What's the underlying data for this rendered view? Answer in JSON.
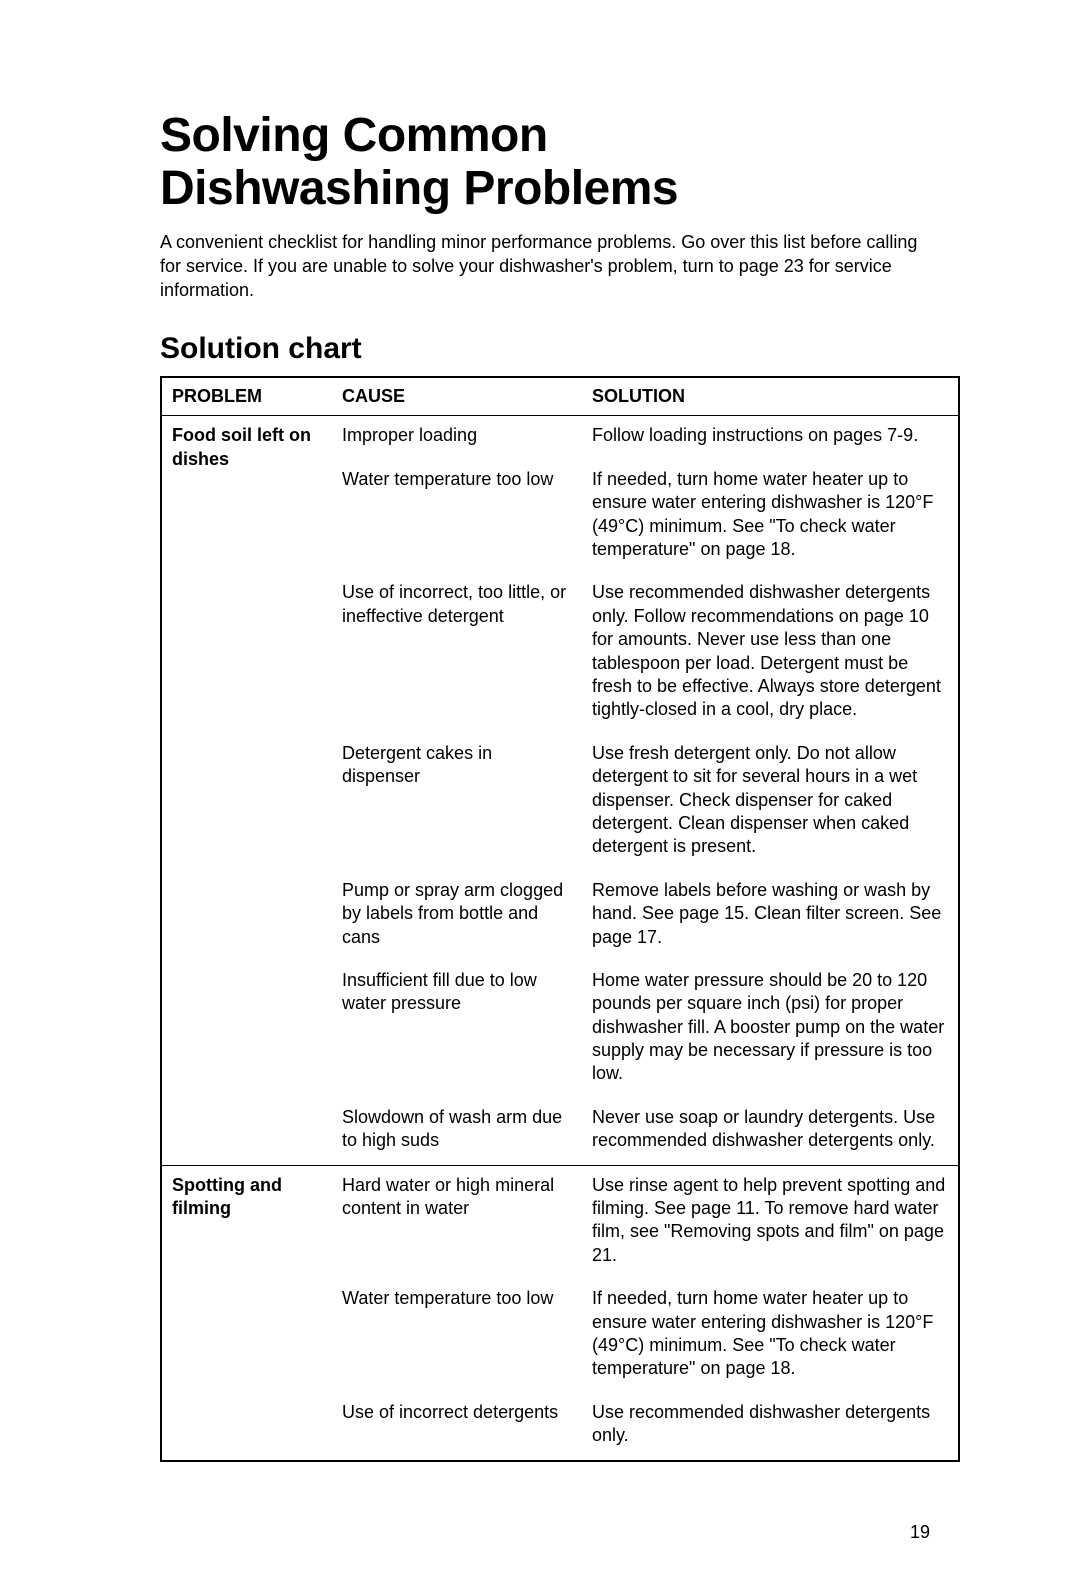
{
  "title_line1": "Solving Common",
  "title_line2": "Dishwashing Problems",
  "intro": "A convenient checklist for handling minor performance problems. Go over this list before calling for service. If you are unable to solve your dishwasher's problem, turn to page 23 for service information.",
  "subheading": "Solution chart",
  "headers": {
    "problem": "PROBLEM",
    "cause": "CAUSE",
    "solution": "SOLUTION"
  },
  "groups": [
    {
      "problem": "Food soil left on dishes",
      "rows": [
        {
          "cause": "Improper loading",
          "solution": "Follow loading instructions on pages 7-9."
        },
        {
          "cause": "Water temperature too low",
          "solution": "If needed, turn home water heater up to ensure water entering dishwasher is 120°F (49°C) minimum. See \"To check water temperature\" on page 18."
        },
        {
          "cause": "Use of incorrect, too little, or ineffective detergent",
          "solution": "Use recommended dishwasher detergents only. Follow recommendations on page 10 for amounts. Never use less than one tablespoon per load. Detergent must be fresh to be effective. Always store detergent tightly-closed in a cool, dry place."
        },
        {
          "cause": "Detergent cakes in dispenser",
          "solution": "Use fresh detergent only. Do not allow detergent to sit for several hours in a wet dispenser. Check dispenser for caked detergent. Clean dispenser when caked detergent is present."
        },
        {
          "cause": "Pump or spray arm clogged by labels from bottle and cans",
          "solution": "Remove labels before washing or wash by hand. See page 15. Clean filter screen. See page 17."
        },
        {
          "cause": "Insufficient fill due to low water pressure",
          "solution": "Home water pressure should be 20 to 120 pounds per square inch (psi) for proper dishwasher fill. A booster pump on the water supply may be necessary if pressure is too low."
        },
        {
          "cause": "Slowdown of wash arm due to high suds",
          "solution": "Never use soap or laundry detergents. Use recommended dishwasher detergents only."
        }
      ]
    },
    {
      "problem": "Spotting and filming",
      "rows": [
        {
          "cause": "Hard water or high mineral content in water",
          "solution": "Use rinse agent to help prevent spotting and filming. See page 11. To remove hard water film, see \"Removing spots and film\" on page 21."
        },
        {
          "cause": "Water temperature too low",
          "solution": "If needed, turn home water heater up to ensure water entering dishwasher is 120°F (49°C) minimum. See \"To check water temperature\" on page 18."
        },
        {
          "cause": "Use of incorrect detergents",
          "solution": "Use recommended dishwasher detergents only."
        }
      ]
    }
  ],
  "page_number": "19"
}
